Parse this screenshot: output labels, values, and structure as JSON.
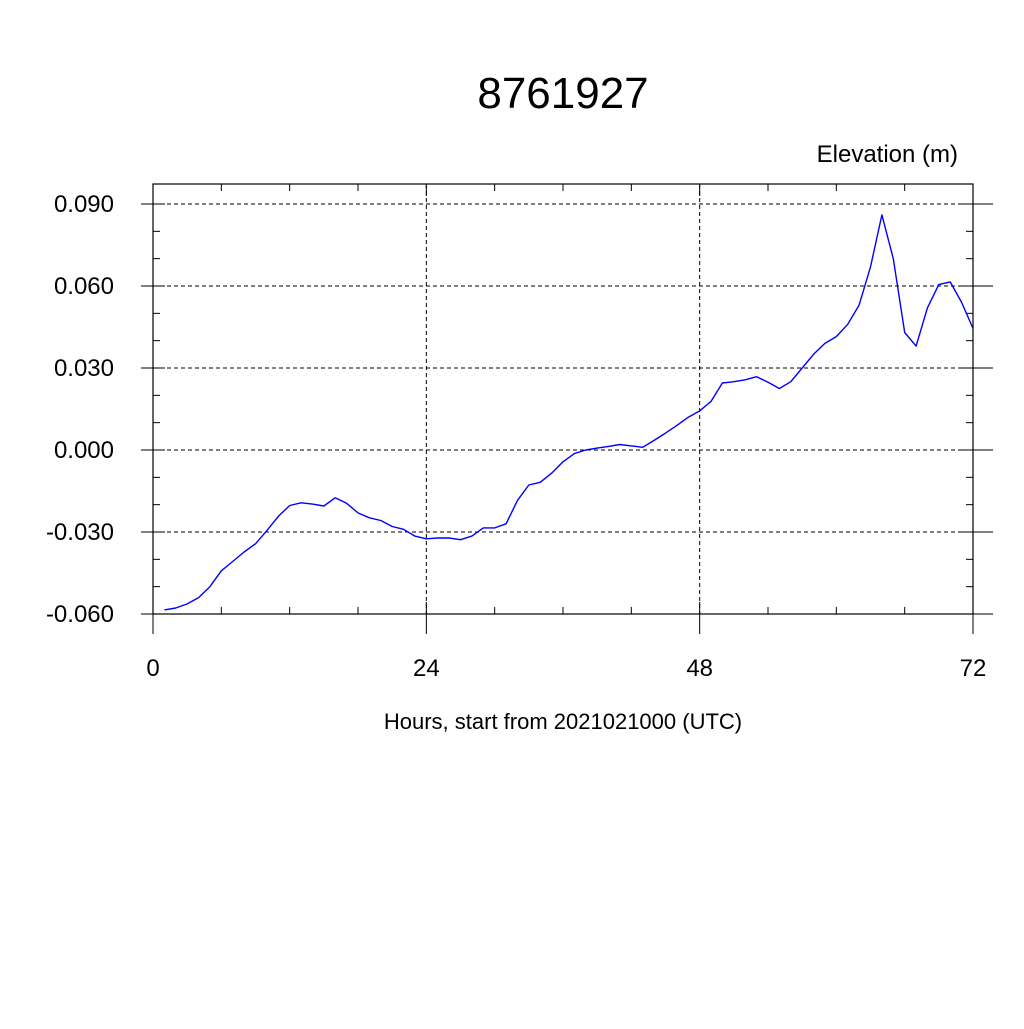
{
  "chart_data": {
    "type": "line",
    "title": "8761927",
    "ylabel": "Elevation (m)",
    "xlabel": "Hours, start from 2021021000 (UTC)",
    "xlim": [
      0,
      72
    ],
    "ylim": [
      -0.06,
      0.09
    ],
    "x_ticks": [
      0,
      24,
      48,
      72
    ],
    "x_tick_labels": [
      "0",
      "24",
      "48",
      "72"
    ],
    "y_ticks": [
      -0.06,
      -0.03,
      0.0,
      0.03,
      0.06,
      0.09
    ],
    "y_tick_labels": [
      "-0.060",
      "-0.030",
      "0.000",
      "0.030",
      "0.060",
      "0.090"
    ],
    "grid": true,
    "line_color": "#0000ff",
    "series": [
      {
        "x": [
          1,
          2,
          3,
          4,
          5,
          6,
          7,
          8,
          9,
          10,
          11,
          12,
          13,
          14,
          15,
          16,
          17,
          18,
          19,
          20,
          21,
          22,
          23,
          24,
          25,
          26,
          27,
          28,
          29,
          30,
          31,
          32,
          33,
          34,
          35,
          36,
          37,
          38,
          39,
          40,
          41,
          42,
          43,
          44,
          45,
          46,
          47,
          48,
          49,
          50,
          51,
          52,
          53,
          54,
          55,
          56,
          57,
          58,
          59,
          60,
          61,
          62,
          63,
          64,
          65,
          66,
          67,
          68,
          69,
          70,
          71,
          72
        ],
        "y": [
          -0.0585,
          -0.0578,
          -0.0563,
          -0.054,
          -0.05,
          -0.0442,
          -0.0408,
          -0.0373,
          -0.0343,
          -0.0295,
          -0.0243,
          -0.0203,
          -0.0193,
          -0.0198,
          -0.0205,
          -0.0175,
          -0.0195,
          -0.023,
          -0.0248,
          -0.0258,
          -0.028,
          -0.029,
          -0.0315,
          -0.0325,
          -0.0322,
          -0.0322,
          -0.0328,
          -0.0315,
          -0.0285,
          -0.0285,
          -0.027,
          -0.0185,
          -0.0128,
          -0.0118,
          -0.0085,
          -0.0043,
          -0.0013,
          0.0,
          0.0007,
          0.0013,
          0.002,
          0.0015,
          0.001,
          0.0035,
          0.0062,
          0.009,
          0.012,
          0.0143,
          0.0178,
          0.0245,
          0.025,
          0.0257,
          0.0268,
          0.0248,
          0.0225,
          0.025,
          0.03,
          0.035,
          0.039,
          0.0415,
          0.046,
          0.053,
          0.067,
          0.086,
          0.07,
          0.043,
          0.038,
          0.052,
          0.0605,
          0.0615,
          0.054,
          0.0445
        ]
      }
    ]
  }
}
